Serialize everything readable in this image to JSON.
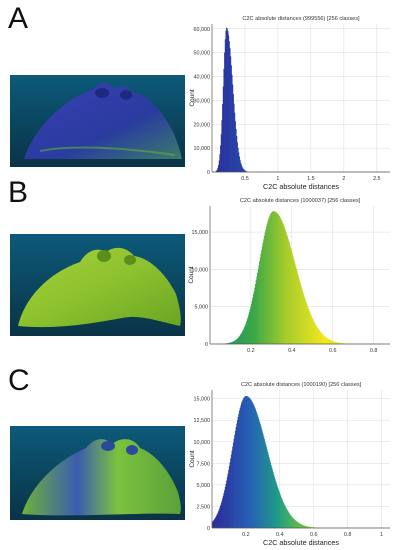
{
  "panels": [
    {
      "letter": "A",
      "model_color": "blue-mesh"
    },
    {
      "letter": "B",
      "model_color": "green-mesh"
    },
    {
      "letter": "C",
      "model_color": "green-blue-mesh"
    }
  ],
  "chart_data": [
    {
      "type": "histogram",
      "title": "C2C absolute distances (999556) [256 classes]",
      "xlabel": "C2C absolute distances",
      "ylabel": "Count",
      "x_ticks": [
        "0.5",
        "1",
        "1.5",
        "2",
        "2.5"
      ],
      "y_ticks": [
        "0",
        "10,000",
        "20,000",
        "30,000",
        "40,000",
        "50,000",
        "60,000"
      ],
      "xlim": [
        0,
        2.7
      ],
      "ylim": [
        0,
        62000
      ],
      "peak_x": 0.22,
      "peak_count": 60500,
      "spread": 0.05,
      "tail": 0.12,
      "colormap": "blue-dominant",
      "grid": true
    },
    {
      "type": "histogram",
      "title": "C2C absolute distances (1000037) [256 classes]",
      "xlabel": "",
      "ylabel": "Count",
      "x_ticks": [
        "0.2",
        "0.4",
        "0.6",
        "0.8"
      ],
      "y_ticks": [
        "0",
        "5,000",
        "10,000",
        "15,000"
      ],
      "xlim": [
        0,
        0.88
      ],
      "ylim": [
        0,
        18500
      ],
      "peak_x": 0.31,
      "peak_count": 17800,
      "spread": 0.07,
      "tail": 0.1,
      "colormap": "green-yellow",
      "grid": true
    },
    {
      "type": "histogram",
      "title": "C2C absolute distances (1000190) [256 classes]",
      "xlabel": "C2C absolute distances",
      "ylabel": "Count",
      "x_ticks": [
        "0.2",
        "0.4",
        "0.6",
        "0.8",
        "1"
      ],
      "y_ticks": [
        "0",
        "2,500",
        "5,000",
        "7,500",
        "10,000",
        "12,500",
        "15,000"
      ],
      "xlim": [
        0,
        1.05
      ],
      "ylim": [
        0,
        16000
      ],
      "peak_x": 0.2,
      "peak_count": 15300,
      "spread": 0.08,
      "tail": 0.12,
      "colormap": "blue-green",
      "grid": true
    }
  ]
}
